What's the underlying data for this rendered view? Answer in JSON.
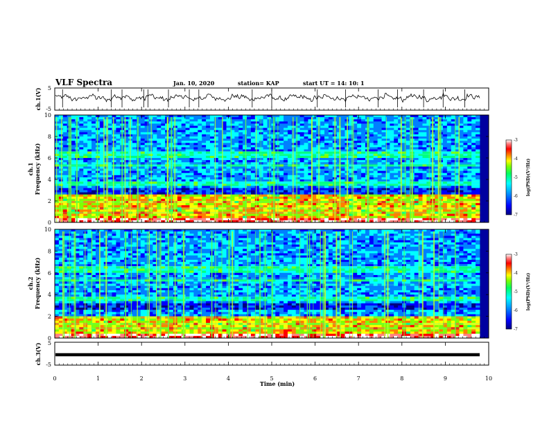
{
  "header": {
    "title": "VLF Spectra",
    "date": "Jan. 10, 2020",
    "station": "station= KAP",
    "start": "start  UT =   14: 10: 1"
  },
  "chart_data": [
    {
      "type": "line",
      "ylabel": "ch.1(V)",
      "ylim": [
        -5,
        5
      ],
      "yticks": [
        "5",
        "-5"
      ],
      "xlim": [
        0,
        10
      ],
      "note": "waveform amplitude trace, approx. between -1 and 1.5 V with spikes"
    },
    {
      "type": "heatmap",
      "ylabel": "ch.1",
      "ylabel2": "Frequency (kHz)",
      "ylim": [
        0,
        10
      ],
      "yticks": [
        "0",
        "2",
        "4",
        "6",
        "8",
        "10"
      ],
      "xlim": [
        0,
        10
      ],
      "colorscale": [
        "#000080",
        "#0000ff",
        "#0080ff",
        "#00ffff",
        "#00ff80",
        "#80ff00",
        "#ffff00",
        "#ff8000",
        "#ff0000",
        "#ff8080",
        "#ffffff"
      ],
      "colorbar": {
        "range": [
          -7,
          -3
        ],
        "ticks": [
          "-3",
          "-4",
          "-5",
          "-6",
          "-7"
        ],
        "label": "log(PSD)(V²/Hz)"
      }
    },
    {
      "type": "heatmap",
      "ylabel": "ch.2",
      "ylabel2": "Frequency (kHz)",
      "ylim": [
        0,
        10
      ],
      "yticks": [
        "0",
        "2",
        "4",
        "6",
        "8",
        "10"
      ],
      "xlim": [
        0,
        10
      ],
      "colorbar": {
        "range": [
          -7,
          -3
        ],
        "ticks": [
          "-3",
          "-4",
          "-5",
          "-6",
          "-7"
        ],
        "label": "log(PSD)(V²/Hz)"
      }
    },
    {
      "type": "line",
      "ylabel": "ch.3(V)",
      "ylim": [
        -5,
        5
      ],
      "yticks": [
        "5",
        "-5"
      ],
      "xlim": [
        0,
        10
      ],
      "xticks": [
        "0",
        "1",
        "2",
        "3",
        "4",
        "5",
        "6",
        "7",
        "8",
        "9",
        "10"
      ],
      "xlabel": "Time  (min)",
      "values": [
        -1,
        -1
      ],
      "x": [
        0,
        9.83
      ]
    }
  ]
}
